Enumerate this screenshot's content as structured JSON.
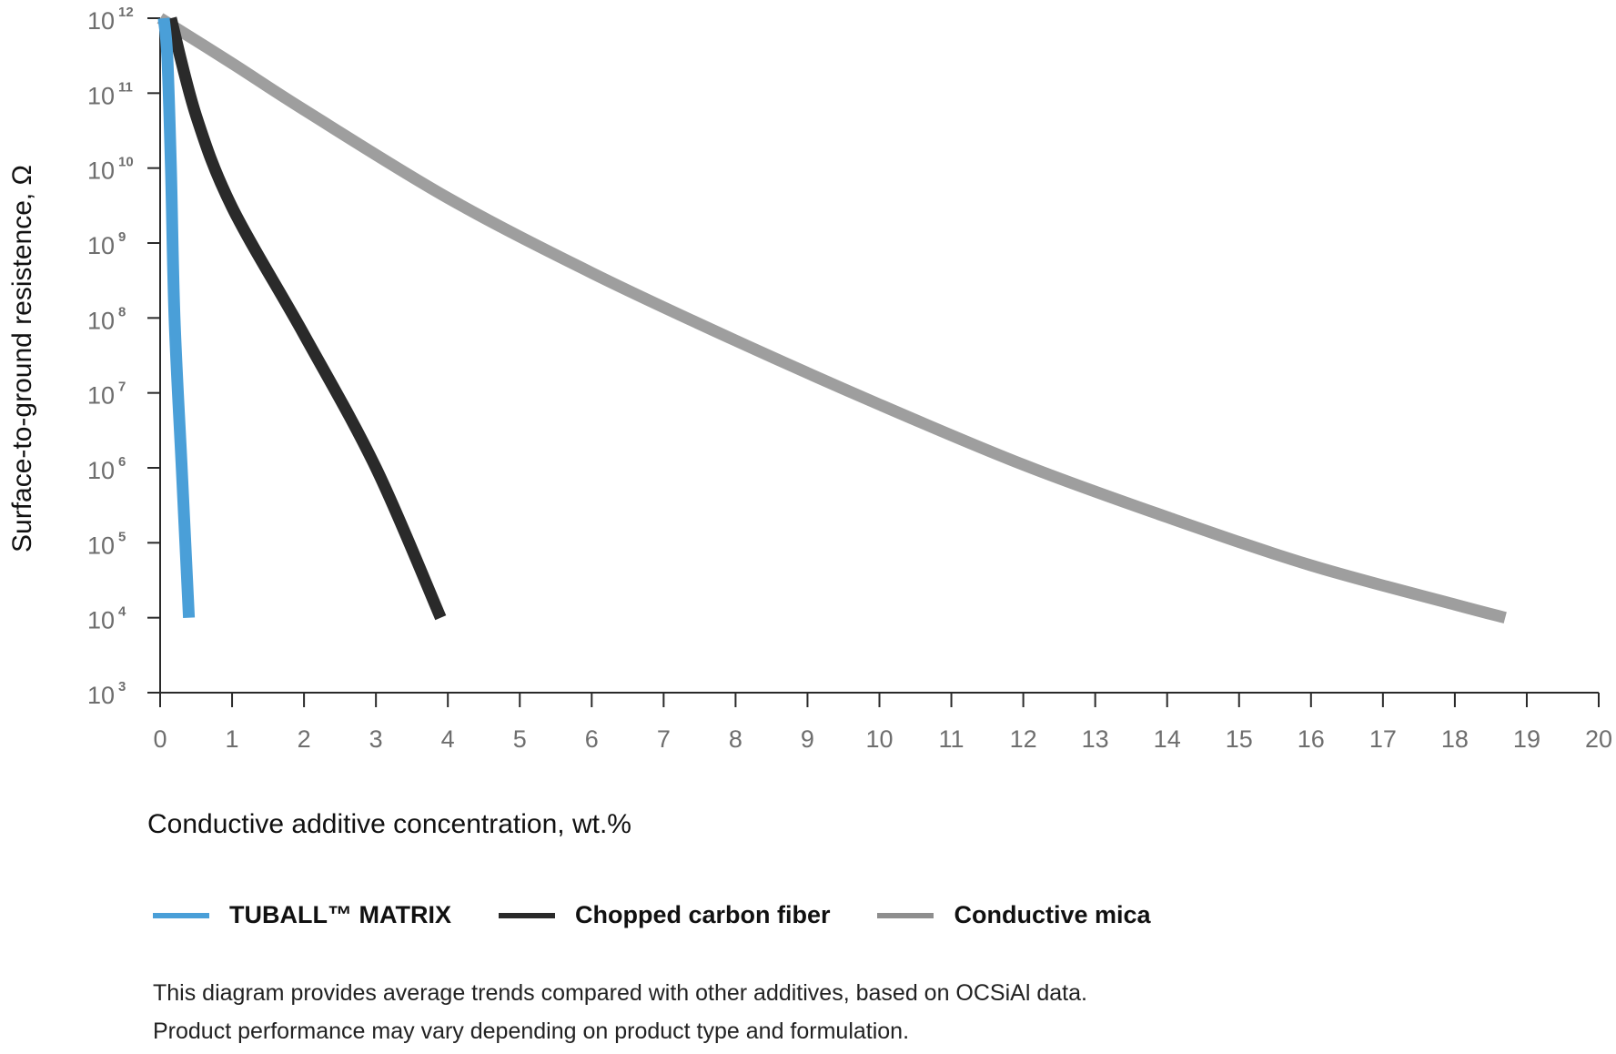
{
  "chart_data": {
    "type": "line",
    "title": "",
    "xlabel": "Conductive additive concentration, wt.%",
    "ylabel": "Surface-to-ground resistence, Ω",
    "y_scale": "log",
    "xlim": [
      0,
      20
    ],
    "ylim": [
      1000.0,
      1000000000000.0
    ],
    "x_ticks": [
      "0",
      "1",
      "2",
      "3",
      "4",
      "5",
      "6",
      "7",
      "8",
      "9",
      "10",
      "11",
      "12",
      "13",
      "14",
      "15",
      "16",
      "17",
      "18",
      "19",
      "20"
    ],
    "y_ticks": [
      {
        "base": "10",
        "exp": "3"
      },
      {
        "base": "10",
        "exp": "4"
      },
      {
        "base": "10",
        "exp": "5"
      },
      {
        "base": "10",
        "exp": "6"
      },
      {
        "base": "10",
        "exp": "7"
      },
      {
        "base": "10",
        "exp": "8"
      },
      {
        "base": "10",
        "exp": "9"
      },
      {
        "base": "10",
        "exp": "10"
      },
      {
        "base": "10",
        "exp": "11"
      },
      {
        "base": "10",
        "exp": "12"
      }
    ],
    "grid": false,
    "legend_position": "bottom-left",
    "series": [
      {
        "name": "TUBALL™  MATRIX",
        "color": "#4a9fd8",
        "points": [
          [
            0.05,
            1000000000000.0
          ],
          [
            0.1,
            300000000000.0
          ],
          [
            0.15,
            10000000000.0
          ],
          [
            0.2,
            100000000.0
          ],
          [
            0.3,
            1000000.0
          ],
          [
            0.4,
            10000.0
          ]
        ]
      },
      {
        "name": "Chopped carbon fiber",
        "color": "#2a2a2a",
        "points": [
          [
            0.15,
            1000000000000.0
          ],
          [
            0.5,
            50000000000.0
          ],
          [
            1,
            3000000000.0
          ],
          [
            2,
            60000000.0
          ],
          [
            3,
            1000000.0
          ],
          [
            3.9,
            10000.0
          ]
        ]
      },
      {
        "name": "Conductive mica",
        "color": "#9e9e9e",
        "points": [
          [
            0,
            1000000000000.0
          ],
          [
            1,
            250000000000.0
          ],
          [
            2,
            60000000000.0
          ],
          [
            4,
            4000000000.0
          ],
          [
            6,
            400000000.0
          ],
          [
            8,
            50000000.0
          ],
          [
            10,
            7000000.0
          ],
          [
            12,
            1100000.0
          ],
          [
            14,
            220000.0
          ],
          [
            16,
            50000.0
          ],
          [
            18,
            15000.0
          ],
          [
            18.7,
            10000.0
          ]
        ]
      }
    ]
  },
  "note": {
    "line1": "This diagram provides average trends compared with other additives, based on OCSiAl data.",
    "line2": "Product performance may vary depending on product type and formulation."
  }
}
